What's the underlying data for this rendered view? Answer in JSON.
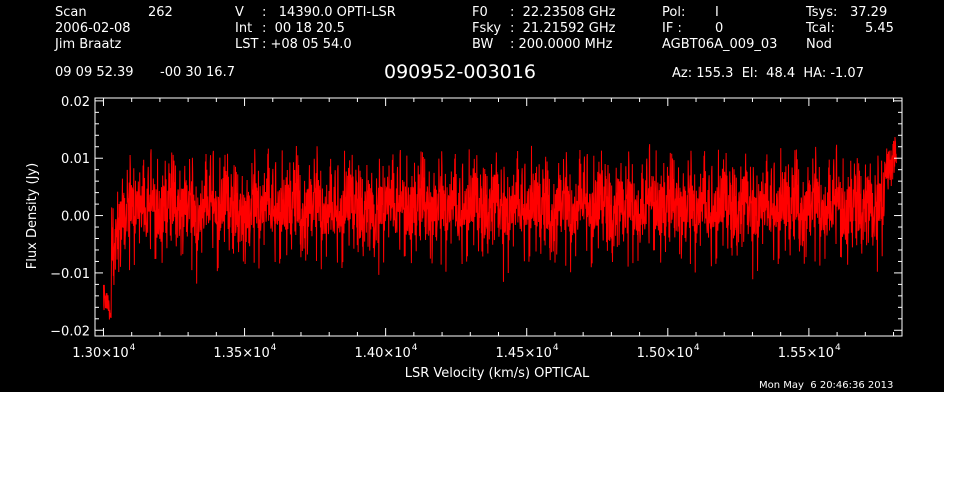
{
  "header": {
    "scan_label": "Scan",
    "scan_value": "262",
    "date": "2006-02-08",
    "observer": "Jim Braatz",
    "ra": "09 09 52.39",
    "dec": "-00 30 16.7",
    "v_label": "V",
    "v_value": ":   14390.0 OPTI-LSR",
    "int_label": "Int",
    "int_value": ":  00 18 20.5",
    "lst_label": "LST",
    "lst_value": ": +08 05 54.0",
    "f0_label": "F0",
    "f0_value": ":  22.23508 GHz",
    "fsky_label": "Fsky",
    "fsky_value": ":  21.21592 GHz",
    "bw_label": "BW",
    "bw_value": ": 200.0000 MHz",
    "pol_label": "Pol:",
    "pol_value": "I",
    "if_label": "IF :",
    "if_value": "0",
    "project": "AGBT06A_009_03",
    "tsys_label": "Tsys:",
    "tsys_value": "37.29",
    "tcal_label": "Tcal:",
    "tcal_value": "5.45",
    "proc": "Nod",
    "source": "090952-003016",
    "az_el_ha": "Az: 155.3  El:  48.4  HA: -1.07"
  },
  "timestamp": "Mon May  6 20:46:36 2013",
  "colors": {
    "background": "#000000",
    "axes": "#ffffff",
    "trace": "#ff0000"
  },
  "chart_data": {
    "type": "line",
    "title": "",
    "xlabel": "LSR Velocity (km/s) OPTICAL",
    "ylabel": "Flux Density (Jy)",
    "xlim": [
      12970,
      15830
    ],
    "ylim": [
      -0.021,
      0.0205
    ],
    "grid": false,
    "legend": "none",
    "x_ticks": [
      13000,
      13500,
      14000,
      14500,
      15000,
      15500
    ],
    "x_tick_mantissas": [
      "1.30×10",
      "1.35×10",
      "1.40×10",
      "1.45×10",
      "1.50×10",
      "1.55×10"
    ],
    "x_tick_exponent": "4",
    "y_ticks": [
      -0.02,
      -0.01,
      0.0,
      0.01,
      0.02
    ],
    "y_tick_labels": [
      "−0.02",
      "−0.01",
      "0.00",
      "0.01",
      "0.02"
    ],
    "series": [
      {
        "color": "#ff0000",
        "x_range": [
          13000,
          15810
        ],
        "y_min": -0.019,
        "y_max": 0.0137,
        "values": [
          -0.013,
          -0.019,
          -0.01,
          -0.004,
          0.002,
          0.004,
          -0.003,
          0.005,
          -0.006,
          0.003,
          0.006,
          -0.002,
          0.004,
          -0.007,
          0.001,
          0.005,
          -0.004,
          0.007,
          -0.003,
          0.002,
          -0.008,
          0.004,
          0.0,
          0.006,
          -0.005,
          0.003,
          -0.002,
          0.008,
          -0.006,
          0.002,
          0.005,
          -0.004,
          0.001,
          -0.007,
          0.006,
          0.002,
          -0.003,
          0.004,
          -0.009,
          0.003,
          0.007,
          -0.002,
          0.005,
          -0.005,
          0.002,
          0.009,
          -0.006,
          0.004,
          -0.001,
          0.006,
          -0.008,
          0.003,
          0.005,
          -0.004,
          0.002,
          0.007,
          -0.006,
          0.001,
          0.004,
          -0.005,
          0.006,
          -0.002,
          0.003,
          -0.007,
          0.005,
          0.001,
          -0.004,
          0.008,
          -0.003,
          0.002,
          0.006,
          -0.006,
          0.004,
          -0.001,
          0.005,
          -0.007,
          0.003,
          0.007,
          -0.004,
          0.002,
          0.009,
          -0.005,
          0.004,
          -0.002,
          0.006,
          -0.008,
          0.003,
          0.005,
          -0.003,
          0.001,
          0.007,
          -0.006,
          0.004,
          0.002,
          -0.005,
          0.006,
          -0.003,
          0.008,
          -0.006,
          0.003,
          0.005,
          -0.004,
          0.002,
          0.006,
          -0.007,
          0.004,
          0.0,
          0.005,
          -0.005,
          0.007,
          0.008,
          0.012
        ]
      }
    ]
  }
}
